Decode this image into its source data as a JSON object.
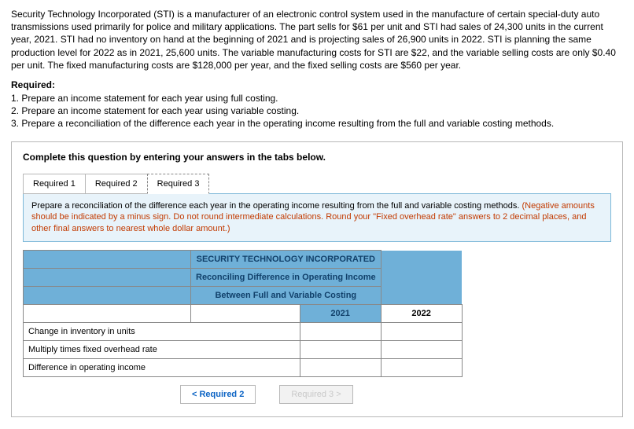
{
  "intro": {
    "paragraph": "Security Technology Incorporated (STI) is a manufacturer of an electronic control system used in the manufacture of certain special-duty auto transmissions used primarily for police and military applications. The part sells for $61 per unit and STI had sales of 24,300 units in the current year, 2021. STI had no inventory on hand at the beginning of 2021 and is projecting sales of 26,900 units in 2022. STI is planning the same production level for 2022 as in 2021, 25,600 units. The variable manufacturing costs for STI are $22, and the variable selling costs are only $0.40 per unit. The fixed manufacturing costs are $128,000 per year, and the fixed selling costs are $560 per year."
  },
  "required": {
    "header": "Required:",
    "items": [
      "1. Prepare an income statement for each year using full costing.",
      "2. Prepare an income statement for each year using variable costing.",
      "3. Prepare a reconciliation of the difference each year in the operating income resulting from the full and variable costing methods."
    ]
  },
  "card": {
    "instruction": "Complete this question by entering your answers in the tabs below.",
    "tabs": [
      "Required 1",
      "Required 2",
      "Required 3"
    ],
    "active_tab_index": 2,
    "prompt_main": "Prepare a reconciliation of the difference each year in the operating income resulting from the full and variable costing methods. ",
    "prompt_hint": "(Negative amounts should be indicated by a minus sign. Do not round intermediate calculations. Round your \"Fixed overhead rate\" answers to 2 decimal places, and other final answers to nearest whole dollar amount.)"
  },
  "recon": {
    "company": "SECURITY TECHNOLOGY INCORPORATED",
    "subtitle1": "Reconciling Difference in Operating Income",
    "subtitle2": "Between Full and Variable Costing",
    "year1": "2021",
    "year2": "2022",
    "rows": [
      "Change in inventory in units",
      "Multiply times fixed overhead rate",
      "Difference in operating income"
    ]
  },
  "nav": {
    "prev": "<  Required 2",
    "next": "Required 3  >"
  }
}
